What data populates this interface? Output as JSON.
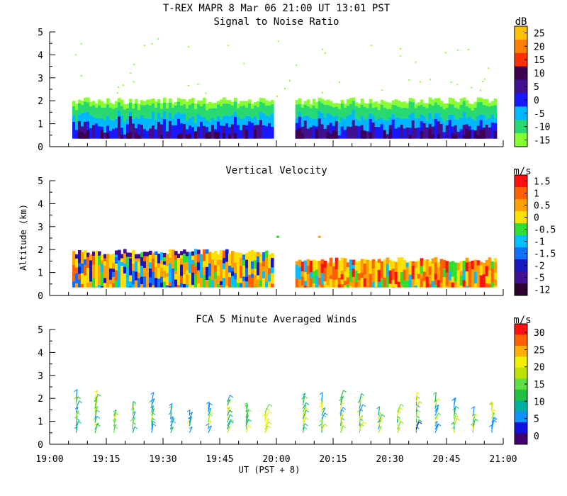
{
  "header": {
    "title": "T-REX   MAPR   8 Mar 06   21:00 UT   13:01   PST"
  },
  "x_axis": {
    "label": "UT  (PST + 8)",
    "ticks": [
      "19:00",
      "19:15",
      "19:30",
      "19:45",
      "20:00",
      "20:15",
      "20:30",
      "20:45",
      "21:00"
    ],
    "range_minutes": [
      0,
      120
    ]
  },
  "y_axis": {
    "label": "Altitude (km)",
    "ticks": [
      "0",
      "1",
      "2",
      "3",
      "4",
      "5"
    ],
    "range": [
      0,
      5
    ]
  },
  "chart_data": [
    {
      "type": "heatmap",
      "title": "Signal to Noise Ratio",
      "units": "dB",
      "colorbar_labels": [
        "25",
        "20",
        "15",
        "10",
        "5",
        "0",
        "-5",
        "-10",
        "-15"
      ],
      "colors": [
        "#ffc000",
        "#ff8000",
        "#ff3000",
        "#400050",
        "#401090",
        "#1818ff",
        "#00b8ff",
        "#28d870",
        "#88ff30"
      ],
      "data_segments_ut_minutes": [
        [
          6,
          59
        ],
        [
          65,
          118
        ]
      ],
      "echo_top_km": 2.0,
      "echo_bottom_km": 0.35
    },
    {
      "type": "heatmap",
      "title": "Vertical Velocity",
      "units": "m/s",
      "colorbar_labels": [
        "1.5",
        "1",
        "0.5",
        "0",
        "-0.5",
        "-1",
        "-1.5",
        "-2",
        "-5",
        "-12"
      ],
      "colors": [
        "#ff1010",
        "#ff6000",
        "#ffa000",
        "#ffe000",
        "#30e030",
        "#00c0ff",
        "#1070ff",
        "#1818c0",
        "#401090",
        "#300030"
      ],
      "data_segments_ut_minutes": [
        [
          6,
          59
        ],
        [
          65,
          118
        ]
      ],
      "echo_top_km": 1.9,
      "echo_bottom_km": 0.35
    },
    {
      "type": "scatter",
      "title": "FCA 5 Minute Averaged Winds",
      "units": "m/s",
      "colorbar_labels": [
        "30",
        "25",
        "20",
        "15",
        "10",
        "5",
        "0"
      ],
      "colors": [
        "#ff1010",
        "#ff6000",
        "#ffb000",
        "#f0f000",
        "#c0e000",
        "#60e040",
        "#20c040",
        "#00b0a0",
        "#1090ff",
        "#1010e0",
        "#400070"
      ],
      "profile_times_ut_minutes": [
        7,
        12,
        17,
        22,
        27,
        32,
        37,
        42,
        47,
        52,
        57,
        67,
        72,
        77,
        82,
        87,
        92,
        97,
        102,
        107,
        112,
        117
      ],
      "levels_km": [
        0.5,
        0.65,
        0.8,
        0.95,
        1.1,
        1.25,
        1.4,
        1.55,
        1.7,
        1.85,
        2.0
      ]
    }
  ]
}
